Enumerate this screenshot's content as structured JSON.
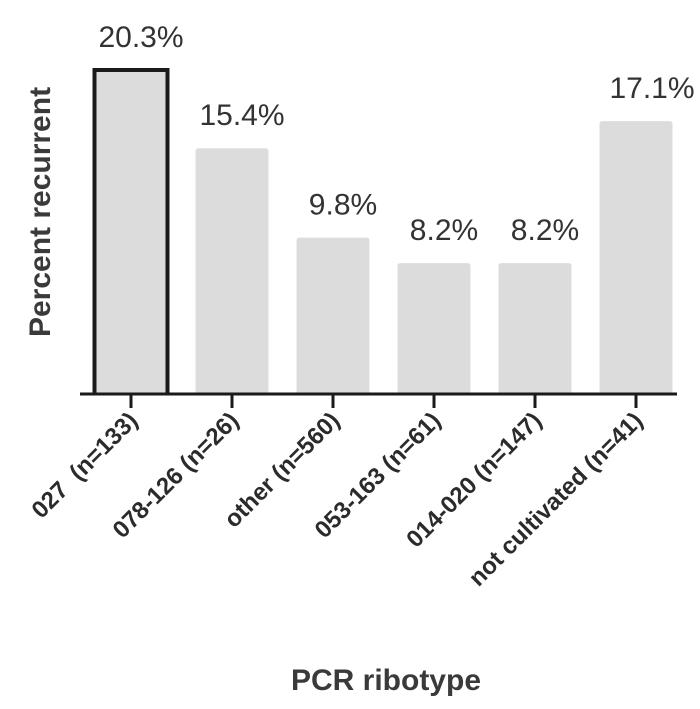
{
  "chart_data": {
    "type": "bar",
    "title": "",
    "xlabel": "PCR ribotype",
    "ylabel": "Percent recurrent",
    "categories": [
      "027  (n=133)",
      "078-126 (n=26)",
      "other (n=560)",
      "053-163 (n=61)",
      "014-020 (n=147)",
      "not cultivated (n=41)"
    ],
    "values": [
      20.3,
      15.4,
      9.8,
      8.2,
      8.2,
      17.1
    ],
    "value_labels": [
      "20.3%",
      "15.4%",
      "9.8%",
      "8.2%",
      "8.2%",
      "17.1%"
    ],
    "highlighted_index": 0,
    "ylim": [
      0,
      20.3
    ],
    "grid": false,
    "legend": "none",
    "colors": {
      "bar_fill": "#dcdcdc",
      "highlight_stroke": "#1a1a1a",
      "axis": "#1a1a1a",
      "text": "#333333"
    }
  }
}
